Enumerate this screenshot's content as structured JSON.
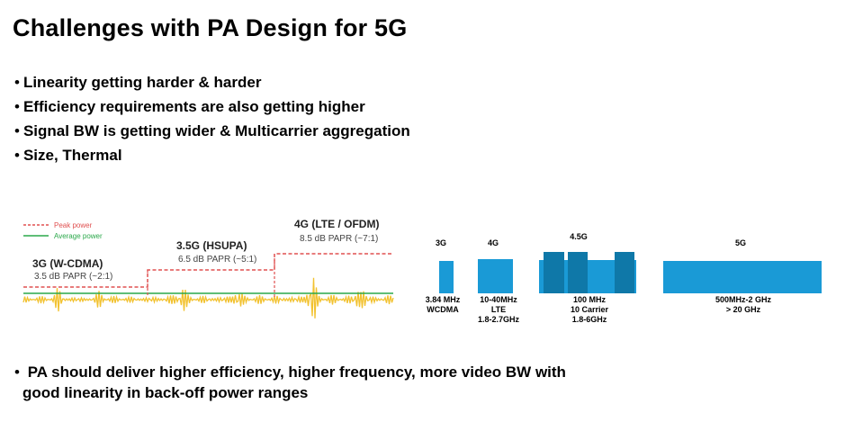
{
  "title": "Challenges with PA Design for 5G",
  "bullets": [
    "Linearity getting harder & harder",
    "Efficiency requirements are also getting higher",
    "Signal BW is getting wider & Multicarrier aggregation",
    "Size, Thermal"
  ],
  "footer": {
    "line1": "PA should deliver higher efficiency, higher frequency, more video BW with",
    "line2": "good linearity in back-off power ranges"
  },
  "waveform": {
    "legend": {
      "peak": "Peak power",
      "average": "Average power"
    },
    "colors": {
      "peak": "#e05050",
      "average": "#2aa84a",
      "signal": "#f2c230"
    },
    "generations": [
      {
        "name": "3G (W-CDMA)",
        "papr": "3.5 dB PAPR (~2:1)"
      },
      {
        "name": "3.5G (HSUPA)",
        "papr": "6.5 dB PAPR (~5:1)"
      },
      {
        "name": "4G (LTE / OFDM)",
        "papr": "8.5 dB PAPR (~7:1)"
      }
    ]
  },
  "spectrum": {
    "color": "#1a9ad6",
    "dark_color": "#0f78a8",
    "items": [
      {
        "gen": "3G",
        "lines": [
          "3.84 MHz",
          "WCDMA"
        ]
      },
      {
        "gen": "4G",
        "lines": [
          "10-40MHz",
          "LTE",
          "1.8-2.7GHz"
        ]
      },
      {
        "gen": "4.5G",
        "lines": [
          "100 MHz",
          "10 Carrier",
          "1.8-6GHz"
        ]
      },
      {
        "gen": "5G",
        "lines": [
          "500MHz-2 GHz",
          "> 20 GHz"
        ]
      }
    ]
  }
}
